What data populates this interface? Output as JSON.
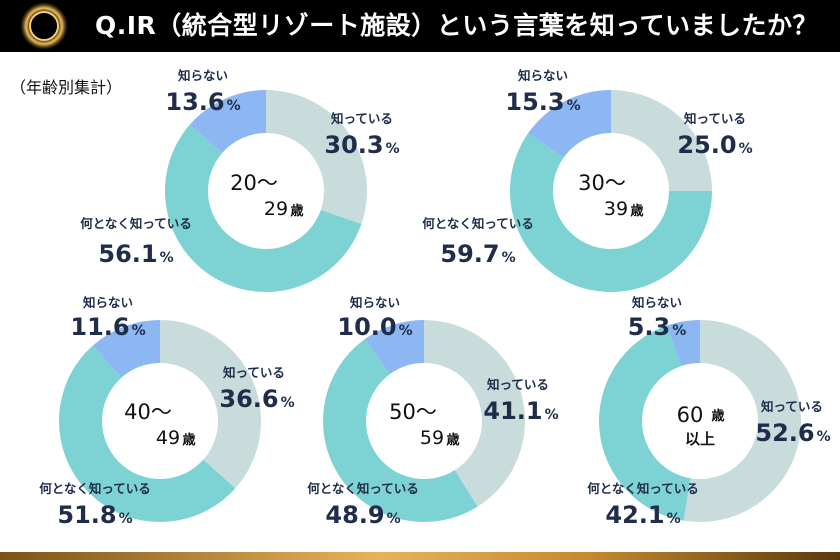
{
  "header": {
    "title": "Q.IR（統合型リゾート施設）という言葉を知っていましたか？",
    "logo_icon": "gold-sun-burst-icon"
  },
  "subtitle": "（年齢別集計）",
  "colors": {
    "know": "#c8dcdc",
    "vaguely": "#7dd3d3",
    "dont_know": "#8db7f3",
    "label": "#1f2d4b"
  },
  "chart_data": [
    {
      "type": "pie",
      "title": "20〜29歳",
      "center": [
        "20〜",
        "29",
        "歳"
      ],
      "slices": [
        {
          "label": "知っている",
          "value": 30.3
        },
        {
          "label": "何となく知っている",
          "value": 56.1
        },
        {
          "label": "知らない",
          "value": 13.6
        }
      ]
    },
    {
      "type": "pie",
      "title": "30〜39歳",
      "center": [
        "30〜",
        "39",
        "歳"
      ],
      "slices": [
        {
          "label": "知っている",
          "value": 25.0
        },
        {
          "label": "何となく知っている",
          "value": 59.7
        },
        {
          "label": "知らない",
          "value": 15.3
        }
      ]
    },
    {
      "type": "pie",
      "title": "40〜49歳",
      "center": [
        "40〜",
        "49",
        "歳"
      ],
      "slices": [
        {
          "label": "知っている",
          "value": 36.6
        },
        {
          "label": "何となく知っている",
          "value": 51.8
        },
        {
          "label": "知らない",
          "value": 11.6
        }
      ]
    },
    {
      "type": "pie",
      "title": "50〜59歳",
      "center": [
        "50〜",
        "59",
        "歳"
      ],
      "slices": [
        {
          "label": "知っている",
          "value": 41.1
        },
        {
          "label": "何となく知っている",
          "value": 48.9
        },
        {
          "label": "知らない",
          "value": 10.0
        }
      ]
    },
    {
      "type": "pie",
      "title": "60歳以上",
      "center": [
        "60",
        "歳",
        "以上"
      ],
      "slices": [
        {
          "label": "知っている",
          "value": 52.6
        },
        {
          "label": "何となく知っている",
          "value": 42.1
        },
        {
          "label": "知らない",
          "value": 5.3
        }
      ]
    }
  ]
}
